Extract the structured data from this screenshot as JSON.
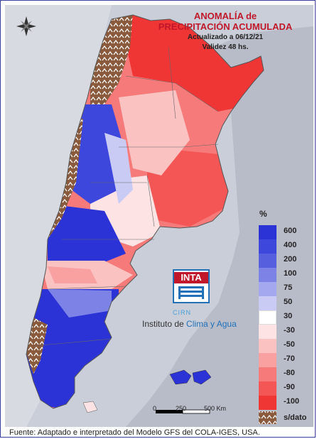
{
  "title": {
    "line1": "ANOMALÍA de",
    "line2": "PRECIPITACIÓN ACUMULADA",
    "updated": "Actualizado a 06/12/21",
    "validity": "Validez 48 hs."
  },
  "legend": {
    "unit": "%",
    "classes": [
      {
        "label": "600",
        "color": "#2b33d6"
      },
      {
        "label": "400",
        "color": "#3d47db"
      },
      {
        "label": "200",
        "color": "#5660df"
      },
      {
        "label": "100",
        "color": "#7d83e6"
      },
      {
        "label": "75",
        "color": "#a4a8ee"
      },
      {
        "label": "50",
        "color": "#c9cbf5"
      },
      {
        "label": "30",
        "color": "#ffffff"
      },
      {
        "label": "-30",
        "color": "#fde3e3"
      },
      {
        "label": "-50",
        "color": "#fbc2c2"
      },
      {
        "label": "-70",
        "color": "#f9a0a0"
      },
      {
        "label": "-80",
        "color": "#f77a7a"
      },
      {
        "label": "-90",
        "color": "#f45656"
      },
      {
        "label": "-100",
        "color": "#f03535"
      }
    ],
    "nodata_label": "s/dato",
    "nodata_color": "#8a5a3c"
  },
  "logo": {
    "name": "INTA",
    "cirn": "CIRN",
    "institute_prefix": "Instituto de ",
    "institute_accent": "Clima y Agua"
  },
  "scale": {
    "ticks": [
      "0",
      "250",
      "500 Km"
    ]
  },
  "footer": "Fuente: Adaptado e interpretado del Modelo GFS del COLA-IGES, USA.",
  "icons": [
    "compass-rose-icon"
  ]
}
